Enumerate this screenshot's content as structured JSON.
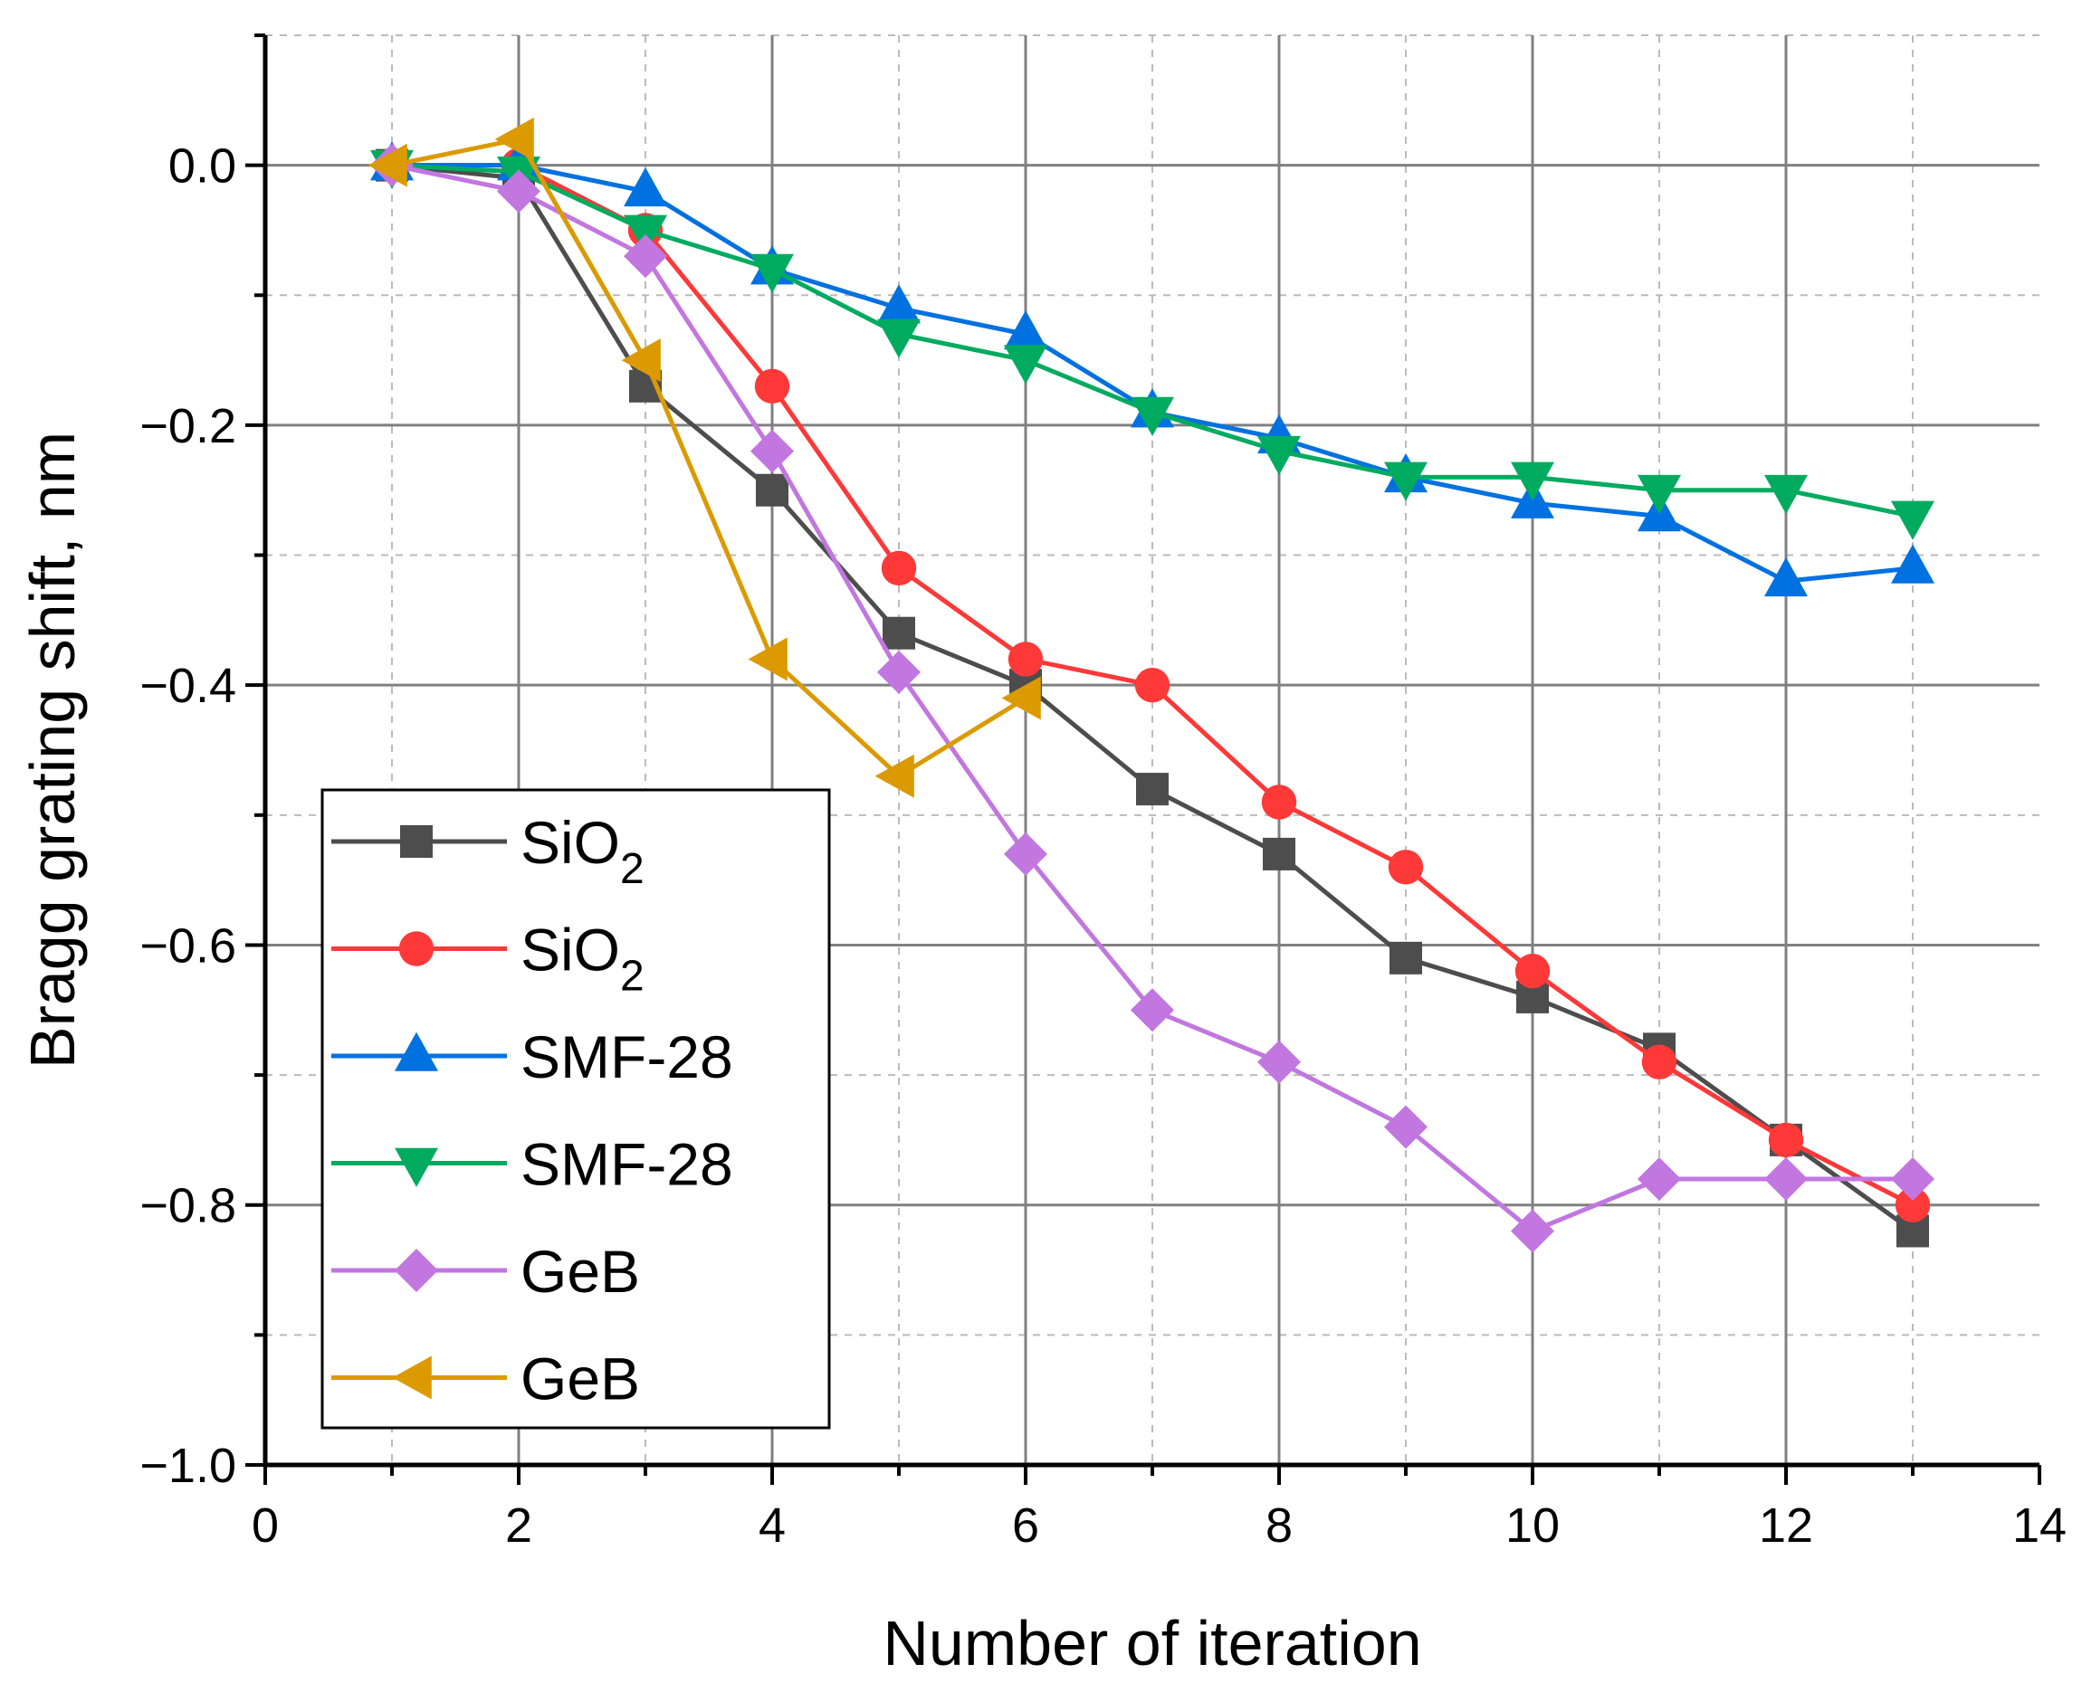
{
  "chart_data": {
    "type": "line",
    "title": "",
    "xlabel": "Number of iteration",
    "ylabel": "Bragg grating shift, nm",
    "xlim": [
      0,
      14
    ],
    "ylim": [
      -1.0,
      0.1
    ],
    "xticks": [
      0,
      2,
      4,
      6,
      8,
      10,
      12,
      14
    ],
    "xtick_labels": [
      "0",
      "2",
      "4",
      "6",
      "8",
      "10",
      "12",
      "14"
    ],
    "yticks": [
      0.0,
      -0.2,
      -0.4,
      -0.6,
      -0.8,
      -1.0
    ],
    "ytick_labels": [
      "0.0",
      "−0.2",
      "−0.4",
      "−0.6",
      "−0.8",
      "−1.0"
    ],
    "grid": true,
    "legend_position": "bottom-left",
    "series": [
      {
        "name": "SiO2",
        "label_main": "SiO",
        "label_sub": "2",
        "color": "#4d4d4d",
        "marker": "square",
        "x": [
          1,
          2,
          3,
          4,
          5,
          6,
          7,
          8,
          9,
          10,
          11,
          12,
          13
        ],
        "y": [
          0,
          -0.01,
          -0.17,
          -0.25,
          -0.36,
          -0.4,
          -0.48,
          -0.53,
          -0.61,
          -0.64,
          -0.68,
          -0.75,
          -0.82
        ]
      },
      {
        "name": "SiO2",
        "label_main": "SiO",
        "label_sub": "2",
        "color": "#ff3838",
        "marker": "circle",
        "x": [
          1,
          2,
          3,
          4,
          5,
          6,
          7,
          8,
          9,
          10,
          11,
          12,
          13
        ],
        "y": [
          0,
          0,
          -0.05,
          -0.17,
          -0.31,
          -0.38,
          -0.4,
          -0.49,
          -0.54,
          -0.62,
          -0.69,
          -0.75,
          -0.8
        ]
      },
      {
        "name": "SMF-28",
        "label_main": "SMF-28",
        "label_sub": "",
        "color": "#0071e0",
        "marker": "triangle-up",
        "x": [
          1,
          2,
          3,
          4,
          5,
          6,
          7,
          8,
          9,
          10,
          11,
          12,
          13
        ],
        "y": [
          0,
          0,
          -0.02,
          -0.08,
          -0.11,
          -0.13,
          -0.19,
          -0.21,
          -0.24,
          -0.26,
          -0.27,
          -0.32,
          -0.31
        ]
      },
      {
        "name": "SMF-28",
        "label_main": "SMF-28",
        "label_sub": "",
        "color": "#00ab60",
        "marker": "triangle-down",
        "x": [
          1,
          2,
          3,
          4,
          5,
          6,
          7,
          8,
          9,
          10,
          11,
          12,
          13
        ],
        "y": [
          0,
          -0.005,
          -0.05,
          -0.08,
          -0.13,
          -0.15,
          -0.19,
          -0.22,
          -0.24,
          -0.24,
          -0.25,
          -0.25,
          -0.27
        ]
      },
      {
        "name": "GeB",
        "label_main": "GeB",
        "label_sub": "",
        "color": "#c176e0",
        "marker": "diamond",
        "x": [
          1,
          2,
          3,
          4,
          5,
          6,
          7,
          8,
          9,
          10,
          11,
          12,
          13
        ],
        "y": [
          0,
          -0.02,
          -0.07,
          -0.22,
          -0.39,
          -0.53,
          -0.65,
          -0.69,
          -0.74,
          -0.82,
          -0.78,
          -0.78,
          -0.78
        ]
      },
      {
        "name": "GeB",
        "label_main": "GeB",
        "label_sub": "",
        "color": "#db9a00",
        "marker": "triangle-left",
        "x": [
          1,
          2,
          3,
          4,
          5,
          6
        ],
        "y": [
          0,
          0.02,
          -0.15,
          -0.38,
          -0.47,
          -0.41
        ]
      }
    ]
  }
}
